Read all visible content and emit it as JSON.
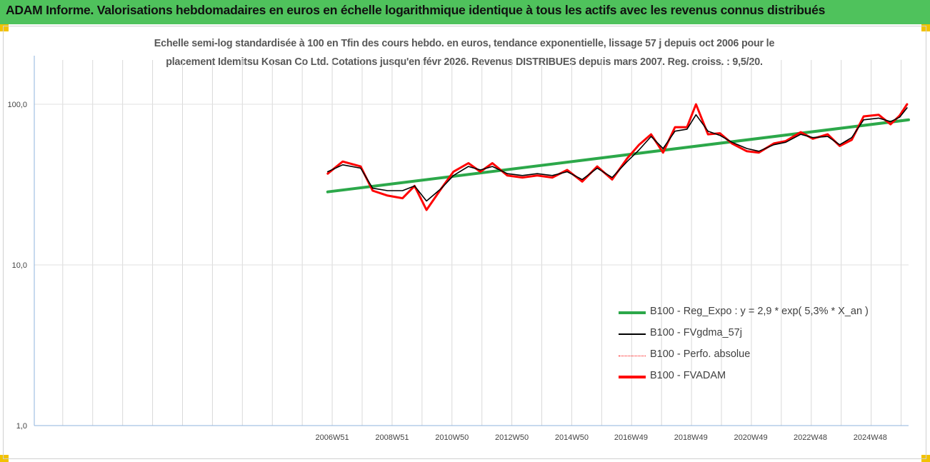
{
  "header": {
    "title": "ADAM Informe. Valorisations hebdomadaires en euros en échelle logarithmique identique à tous les actifs avec les revenus connus distribués"
  },
  "colors": {
    "header_bg": "#4fc25c",
    "corner_accent": "#f2c200",
    "regression": "#2ca84a",
    "fvgdma": "#000000",
    "perfo": "#ff0000",
    "fvadam": "#ff0000"
  },
  "chart_data": {
    "type": "line",
    "title_line1": "Echelle semi-log standardisée à 100 en Tfin des cours hebdo. en euros, tendance exponentielle, lissage 57 j depuis oct 2006 pour le",
    "title_line2": "placement Idemitsu  Kosan Co Ltd. Cotations jusqu'en févr 2026.  Revenus DISTRIBUES depuis mars 2007. Reg. croiss. : 9,5/20.",
    "y_scale": "log",
    "ylim": [
      1,
      200
    ],
    "y_ticks": [
      {
        "value": 1,
        "label": "1,0"
      },
      {
        "value": 10,
        "label": "10,0"
      },
      {
        "value": 100,
        "label": "100,0"
      }
    ],
    "xlim": [
      1997.0,
      2026.2
    ],
    "x_ticks": [
      {
        "pos": 2006.95,
        "label": "2006W51"
      },
      {
        "pos": 2008.95,
        "label": "2008W51"
      },
      {
        "pos": 2010.95,
        "label": "2010W50"
      },
      {
        "pos": 2012.95,
        "label": "2012W50"
      },
      {
        "pos": 2014.95,
        "label": "2014W50"
      },
      {
        "pos": 2016.93,
        "label": "2016W49"
      },
      {
        "pos": 2018.93,
        "label": "2018W49"
      },
      {
        "pos": 2020.93,
        "label": "2020W49"
      },
      {
        "pos": 2022.92,
        "label": "2022W48"
      },
      {
        "pos": 2024.92,
        "label": "2024W48"
      }
    ],
    "grid": "vertical",
    "legend_position": "bottom-right",
    "series": [
      {
        "name": "B100 - Reg_Expo : y = 2,9 * exp( 5,3% *  X_an )",
        "key": "regression",
        "style": "thick",
        "points": [
          [
            2006.8,
            28.5
          ],
          [
            2026.2,
            80
          ]
        ]
      },
      {
        "name": "B100 - FVgdma_57j",
        "key": "fvgdma",
        "style": "thin",
        "points": [
          [
            2006.8,
            38
          ],
          [
            2007.3,
            42
          ],
          [
            2007.9,
            40
          ],
          [
            2008.3,
            30
          ],
          [
            2008.8,
            29
          ],
          [
            2009.3,
            29
          ],
          [
            2009.7,
            31
          ],
          [
            2010.1,
            25
          ],
          [
            2010.6,
            30
          ],
          [
            2011.0,
            36
          ],
          [
            2011.5,
            41
          ],
          [
            2011.9,
            39
          ],
          [
            2012.3,
            41
          ],
          [
            2012.8,
            37
          ],
          [
            2013.3,
            36
          ],
          [
            2013.8,
            37
          ],
          [
            2014.3,
            36
          ],
          [
            2014.8,
            38
          ],
          [
            2015.3,
            34
          ],
          [
            2015.8,
            40
          ],
          [
            2016.3,
            35
          ],
          [
            2016.8,
            44
          ],
          [
            2017.2,
            52
          ],
          [
            2017.6,
            63
          ],
          [
            2018.0,
            53
          ],
          [
            2018.4,
            68
          ],
          [
            2018.8,
            70
          ],
          [
            2019.1,
            86
          ],
          [
            2019.5,
            68
          ],
          [
            2019.9,
            64
          ],
          [
            2020.3,
            58
          ],
          [
            2020.8,
            53
          ],
          [
            2021.2,
            51
          ],
          [
            2021.7,
            56
          ],
          [
            2022.1,
            58
          ],
          [
            2022.6,
            65
          ],
          [
            2023.0,
            62
          ],
          [
            2023.5,
            63
          ],
          [
            2023.9,
            56
          ],
          [
            2024.3,
            62
          ],
          [
            2024.7,
            80
          ],
          [
            2025.2,
            82
          ],
          [
            2025.6,
            78
          ],
          [
            2025.9,
            83
          ],
          [
            2026.15,
            95
          ]
        ]
      },
      {
        "name": "B100 - Perfo. absolue",
        "key": "perfo",
        "style": "dotted",
        "points": [
          [
            2006.8,
            37
          ],
          [
            2007.3,
            44
          ],
          [
            2007.9,
            41
          ],
          [
            2008.3,
            29
          ],
          [
            2008.8,
            27
          ],
          [
            2009.3,
            26
          ],
          [
            2009.7,
            31
          ],
          [
            2010.1,
            22
          ],
          [
            2010.6,
            30
          ],
          [
            2011.0,
            38
          ],
          [
            2011.5,
            43
          ],
          [
            2011.9,
            38
          ],
          [
            2012.3,
            43
          ],
          [
            2012.8,
            36
          ],
          [
            2013.3,
            35
          ],
          [
            2013.8,
            36
          ],
          [
            2014.3,
            35
          ],
          [
            2014.8,
            39
          ],
          [
            2015.3,
            33
          ],
          [
            2015.8,
            41
          ],
          [
            2016.3,
            34
          ],
          [
            2016.8,
            46
          ],
          [
            2017.2,
            56
          ],
          [
            2017.6,
            65
          ],
          [
            2018.0,
            50
          ],
          [
            2018.4,
            72
          ],
          [
            2018.8,
            72
          ],
          [
            2019.1,
            100
          ],
          [
            2019.5,
            65
          ],
          [
            2019.9,
            66
          ],
          [
            2020.3,
            57
          ],
          [
            2020.8,
            51
          ],
          [
            2021.2,
            50
          ],
          [
            2021.7,
            57
          ],
          [
            2022.1,
            59
          ],
          [
            2022.6,
            67
          ],
          [
            2023.0,
            61
          ],
          [
            2023.5,
            65
          ],
          [
            2023.9,
            55
          ],
          [
            2024.3,
            60
          ],
          [
            2024.7,
            84
          ],
          [
            2025.2,
            86
          ],
          [
            2025.6,
            75
          ],
          [
            2025.9,
            85
          ],
          [
            2026.15,
            100
          ]
        ]
      },
      {
        "name": "B100 - FVADAM",
        "key": "fvadam",
        "style": "thick",
        "points": [
          [
            2006.8,
            37
          ],
          [
            2007.3,
            44
          ],
          [
            2007.9,
            41
          ],
          [
            2008.3,
            29
          ],
          [
            2008.8,
            27
          ],
          [
            2009.3,
            26
          ],
          [
            2009.7,
            31
          ],
          [
            2010.1,
            22
          ],
          [
            2010.6,
            30
          ],
          [
            2011.0,
            38
          ],
          [
            2011.5,
            43
          ],
          [
            2011.9,
            38
          ],
          [
            2012.3,
            43
          ],
          [
            2012.8,
            36
          ],
          [
            2013.3,
            35
          ],
          [
            2013.8,
            36
          ],
          [
            2014.3,
            35
          ],
          [
            2014.8,
            39
          ],
          [
            2015.3,
            33
          ],
          [
            2015.8,
            41
          ],
          [
            2016.3,
            34
          ],
          [
            2016.8,
            46
          ],
          [
            2017.2,
            56
          ],
          [
            2017.6,
            65
          ],
          [
            2018.0,
            50
          ],
          [
            2018.4,
            72
          ],
          [
            2018.8,
            72
          ],
          [
            2019.1,
            100
          ],
          [
            2019.5,
            65
          ],
          [
            2019.9,
            66
          ],
          [
            2020.3,
            57
          ],
          [
            2020.8,
            51
          ],
          [
            2021.2,
            50
          ],
          [
            2021.7,
            57
          ],
          [
            2022.1,
            59
          ],
          [
            2022.6,
            67
          ],
          [
            2023.0,
            61
          ],
          [
            2023.5,
            65
          ],
          [
            2023.9,
            55
          ],
          [
            2024.3,
            60
          ],
          [
            2024.7,
            84
          ],
          [
            2025.2,
            86
          ],
          [
            2025.6,
            75
          ],
          [
            2025.9,
            85
          ],
          [
            2026.15,
            100
          ]
        ]
      }
    ]
  }
}
